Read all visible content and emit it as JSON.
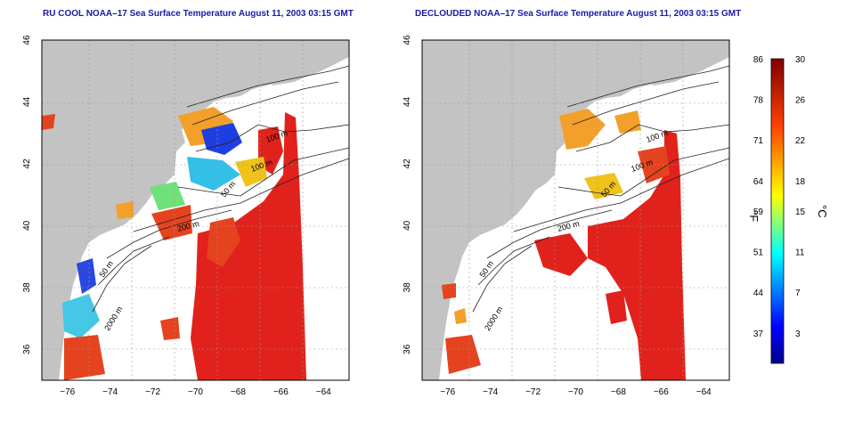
{
  "panels": [
    {
      "title": "RU COOL NOAA–17 Sea Surface Temperature August 11, 2003 03:15 GMT",
      "variant": "raw"
    },
    {
      "title": "DECLOUDED NOAA–17 Sea Surface Temperature August 11, 2003 03:15 GMT",
      "variant": "declouded"
    }
  ],
  "axes": {
    "x_ticks": [
      "−76",
      "−74",
      "−72",
      "−70",
      "−68",
      "−66",
      "−64"
    ],
    "x_values": [
      -76,
      -74,
      -72,
      -70,
      -68,
      -66,
      -64
    ],
    "y_ticks": [
      "46",
      "44",
      "42",
      "40",
      "38",
      "36"
    ],
    "y_values": [
      46,
      44,
      42,
      40,
      38,
      36
    ],
    "lon_range": [
      -77.2,
      -62.8
    ],
    "lat_range": [
      35,
      46
    ]
  },
  "contour_labels": [
    "100 m",
    "100 m",
    "50 m",
    "200 m",
    "50 m",
    "2000 m"
  ],
  "colorbar": {
    "fahrenheit_ticks": [
      "86",
      "78",
      "71",
      "64",
      "59",
      "51",
      "44",
      "37"
    ],
    "celsius_ticks": [
      "30",
      "26",
      "22",
      "18",
      "15",
      "11",
      "7",
      "3"
    ],
    "fahrenheit_unit": "°F",
    "celsius_unit": "°C",
    "celsius_range": [
      0,
      30
    ]
  },
  "colors": {
    "land": "#c3c3c3",
    "sst_hot": "#e1221c",
    "title_blue": "#1a1aa6"
  }
}
